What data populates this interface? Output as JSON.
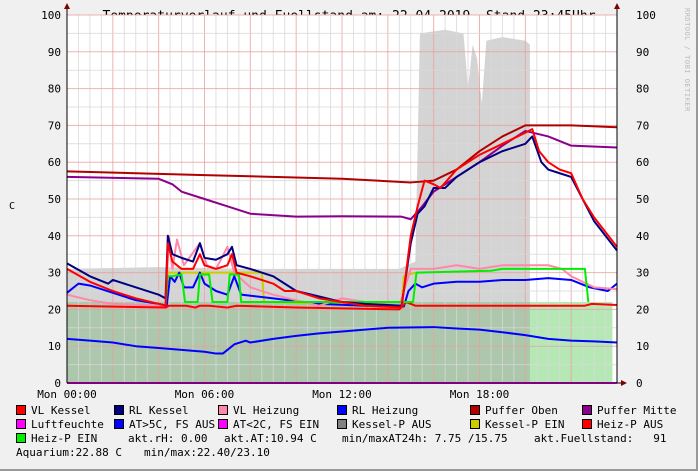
{
  "title": "Temperaturverlauf und Fuellstand am: 22.04.2019, Stand 23:45Uhr",
  "watermark": "RRDTOOL / TOBI OETIKER",
  "chart_data": {
    "type": "line",
    "title": "Temperaturverlauf und Fuellstand am: 22.04.2019, Stand 23:45Uhr",
    "ylabel": "C",
    "xlabel": "",
    "xlim_hours": [
      0,
      24
    ],
    "ylim": [
      0,
      100
    ],
    "x_ticks": [
      {
        "hour": 0,
        "label": "Mon 00:00"
      },
      {
        "hour": 6,
        "label": "Mon 06:00"
      },
      {
        "hour": 12,
        "label": "Mon 12:00"
      },
      {
        "hour": 18,
        "label": "Mon 18:00"
      }
    ],
    "y_ticks": [
      "0",
      "10",
      "20",
      "30",
      "40",
      "50",
      "60",
      "70",
      "80",
      "90",
      "100"
    ],
    "grid": true,
    "areas": [
      {
        "color": "#8fdc8f",
        "points": [
          [
            0,
            22
          ],
          [
            20.2,
            22
          ],
          [
            20.2,
            22
          ],
          [
            23.8,
            22
          ]
        ]
      },
      {
        "color": "#a0a0a0",
        "points": [
          [
            0,
            31
          ],
          [
            4,
            31.5
          ],
          [
            8,
            31
          ],
          [
            12,
            31
          ],
          [
            14.5,
            31
          ],
          [
            15.2,
            33
          ],
          [
            15.4,
            95
          ],
          [
            16.5,
            96
          ],
          [
            17.3,
            95
          ],
          [
            17.5,
            80
          ],
          [
            17.7,
            92
          ],
          [
            17.9,
            88
          ],
          [
            18.1,
            76
          ],
          [
            18.3,
            93
          ],
          [
            19,
            94
          ],
          [
            20,
            93
          ],
          [
            20.2,
            92
          ]
        ]
      }
    ],
    "series": [
      {
        "name": "Puffer Oben",
        "color": "#b00000",
        "points": [
          [
            0,
            57.5
          ],
          [
            6,
            56.5
          ],
          [
            12,
            55.5
          ],
          [
            15,
            54.5
          ],
          [
            16,
            55
          ],
          [
            17,
            58
          ],
          [
            18,
            63
          ],
          [
            19,
            67
          ],
          [
            20,
            70
          ],
          [
            22,
            70
          ],
          [
            24,
            69.5
          ]
        ]
      },
      {
        "name": "Puffer Mitte",
        "color": "#8b008b",
        "points": [
          [
            0,
            56
          ],
          [
            4,
            55.5
          ],
          [
            4.6,
            54
          ],
          [
            5,
            52
          ],
          [
            6,
            50
          ],
          [
            7,
            48
          ],
          [
            8,
            46
          ],
          [
            10,
            45.2
          ],
          [
            12,
            45.3
          ],
          [
            14.6,
            45.2
          ],
          [
            15,
            44.5
          ],
          [
            15.5,
            48
          ],
          [
            16,
            52
          ],
          [
            17,
            56
          ],
          [
            18,
            60
          ],
          [
            19,
            64.5
          ],
          [
            20,
            68.5
          ],
          [
            21,
            67
          ],
          [
            22,
            64.5
          ],
          [
            24,
            64
          ]
        ]
      },
      {
        "name": "AT>5C, FS AUS",
        "color": "#0000ff",
        "points": [
          [
            0,
            12
          ],
          [
            1,
            11.5
          ],
          [
            2,
            11
          ],
          [
            3,
            10
          ],
          [
            4,
            9.5
          ],
          [
            5,
            9
          ],
          [
            6,
            8.5
          ],
          [
            6.5,
            8
          ],
          [
            6.8,
            8
          ],
          [
            7.3,
            10.5
          ],
          [
            7.8,
            11.5
          ],
          [
            8,
            11
          ],
          [
            9,
            12
          ],
          [
            10,
            12.8
          ],
          [
            11,
            13.5
          ],
          [
            12,
            14
          ],
          [
            13,
            14.5
          ],
          [
            14,
            15
          ],
          [
            16,
            15.2
          ],
          [
            17,
            14.8
          ],
          [
            18,
            14.5
          ],
          [
            19,
            13.8
          ],
          [
            20,
            13
          ],
          [
            21,
            12
          ],
          [
            22,
            11.5
          ],
          [
            23,
            11.3
          ],
          [
            24,
            11
          ]
        ]
      },
      {
        "name": "Luftfeuchte",
        "color": "#ff00ff",
        "points": [
          [
            0,
            0
          ],
          [
            24,
            0
          ]
        ]
      },
      {
        "name": "Kessel-P EIN",
        "color": "#cccc00",
        "points": [
          [
            4.3,
            21
          ],
          [
            4.4,
            30
          ],
          [
            8.5,
            30
          ],
          [
            8.6,
            22
          ],
          [
            14.6,
            21
          ],
          [
            14.7,
            29
          ],
          [
            15.2,
            30
          ]
        ]
      },
      {
        "name": "RL Heizung",
        "color": "#0000ff",
        "points": [
          [
            0,
            24.5
          ],
          [
            0.5,
            27
          ],
          [
            1,
            26.5
          ],
          [
            2,
            24.5
          ],
          [
            3,
            22.5
          ],
          [
            4,
            21.5
          ],
          [
            4.35,
            21
          ],
          [
            4.5,
            29
          ],
          [
            4.7,
            27.5
          ],
          [
            4.9,
            30
          ],
          [
            5.1,
            26
          ],
          [
            5.5,
            26
          ],
          [
            5.8,
            30
          ],
          [
            6,
            27
          ],
          [
            6.5,
            25
          ],
          [
            7,
            24
          ],
          [
            7.3,
            29
          ],
          [
            7.6,
            24
          ],
          [
            9,
            23
          ],
          [
            11,
            21.5
          ],
          [
            13,
            21
          ],
          [
            14.7,
            20.8
          ],
          [
            14.9,
            25
          ],
          [
            15.2,
            27
          ],
          [
            15.5,
            26
          ],
          [
            16,
            27
          ],
          [
            17,
            27.5
          ],
          [
            18,
            27.5
          ],
          [
            19,
            28
          ],
          [
            20,
            28
          ],
          [
            21,
            28.5
          ],
          [
            22,
            28
          ],
          [
            22.8,
            26
          ],
          [
            23.6,
            25
          ],
          [
            24,
            27
          ]
        ]
      },
      {
        "name": "VL Heizung",
        "color": "#ff88aa",
        "points": [
          [
            0,
            24
          ],
          [
            1,
            22.5
          ],
          [
            2,
            21.5
          ],
          [
            4.3,
            21
          ],
          [
            4.45,
            40
          ],
          [
            4.6,
            31
          ],
          [
            4.8,
            39
          ],
          [
            5.1,
            32
          ],
          [
            5.8,
            38
          ],
          [
            6.1,
            32
          ],
          [
            6.5,
            31
          ],
          [
            7,
            37
          ],
          [
            7.3,
            30
          ],
          [
            8,
            26
          ],
          [
            9,
            24
          ],
          [
            10,
            22.5
          ],
          [
            11,
            21
          ],
          [
            12,
            23
          ],
          [
            13,
            22
          ],
          [
            14.5,
            21
          ],
          [
            15,
            31
          ],
          [
            16,
            31
          ],
          [
            17,
            32
          ],
          [
            18,
            31
          ],
          [
            19,
            32
          ],
          [
            20,
            32
          ],
          [
            21,
            32
          ],
          [
            21.6,
            31
          ],
          [
            22,
            29
          ],
          [
            23,
            26
          ],
          [
            24,
            25.5
          ]
        ]
      },
      {
        "name": "Heiz-P AUS",
        "color": "#ff0000",
        "points": [
          [
            0,
            21
          ],
          [
            4.3,
            20.5
          ],
          [
            4.45,
            21
          ],
          [
            5.0,
            21
          ],
          [
            5.2,
            21
          ],
          [
            5.6,
            20.5
          ],
          [
            5.8,
            21
          ],
          [
            6.2,
            21
          ],
          [
            7,
            20.5
          ],
          [
            7.4,
            21
          ],
          [
            10,
            20.5
          ],
          [
            14.5,
            20
          ],
          [
            14.8,
            22
          ],
          [
            15.2,
            21
          ],
          [
            22.6,
            21
          ],
          [
            22.9,
            21.5
          ],
          [
            24,
            21.2
          ]
        ]
      },
      {
        "name": "Heiz-P EIN",
        "color": "#00ee00",
        "points": [
          [
            4.3,
            21
          ],
          [
            4.4,
            29
          ],
          [
            4.6,
            29
          ],
          [
            5.0,
            29.5
          ],
          [
            5.15,
            22
          ],
          [
            5.7,
            22
          ],
          [
            5.8,
            29.5
          ],
          [
            6.2,
            29.5
          ],
          [
            6.35,
            22
          ],
          [
            7.0,
            22
          ],
          [
            7.1,
            29.5
          ],
          [
            7.5,
            29.5
          ],
          [
            7.6,
            22
          ],
          [
            15.1,
            22
          ],
          [
            15.25,
            30
          ],
          [
            18.5,
            30.5
          ],
          [
            19,
            31
          ],
          [
            22.6,
            31
          ],
          [
            22.75,
            22
          ]
        ]
      },
      {
        "name": "RL Kessel",
        "color": "#000080",
        "points": [
          [
            0,
            32.5
          ],
          [
            1,
            29
          ],
          [
            1.8,
            27
          ],
          [
            2,
            28
          ],
          [
            3,
            26
          ],
          [
            4,
            24
          ],
          [
            4.3,
            23
          ],
          [
            4.4,
            40
          ],
          [
            4.6,
            35
          ],
          [
            5.0,
            34
          ],
          [
            5.5,
            33
          ],
          [
            5.8,
            38
          ],
          [
            6.0,
            34
          ],
          [
            6.5,
            33.5
          ],
          [
            7.0,
            35
          ],
          [
            7.2,
            37
          ],
          [
            7.4,
            32
          ],
          [
            8,
            31
          ],
          [
            9,
            29
          ],
          [
            9.5,
            27
          ],
          [
            10,
            25
          ],
          [
            11,
            23.5
          ],
          [
            12,
            22
          ],
          [
            13,
            21.5
          ],
          [
            14.6,
            21
          ],
          [
            15,
            38
          ],
          [
            15.3,
            46
          ],
          [
            15.6,
            48
          ],
          [
            16,
            53
          ],
          [
            16.5,
            53
          ],
          [
            17,
            56
          ],
          [
            18,
            60
          ],
          [
            19,
            63
          ],
          [
            20,
            65
          ],
          [
            20.3,
            67
          ],
          [
            20.7,
            60
          ],
          [
            21,
            58
          ],
          [
            21.5,
            57
          ],
          [
            22,
            56
          ],
          [
            22.5,
            50
          ],
          [
            23,
            44
          ],
          [
            24,
            36
          ]
        ]
      },
      {
        "name": "VL Kessel",
        "color": "#ff0000",
        "points": [
          [
            0,
            31
          ],
          [
            1,
            27.5
          ],
          [
            2,
            25
          ],
          [
            3,
            23
          ],
          [
            4,
            21.5
          ],
          [
            4.3,
            21
          ],
          [
            4.4,
            38
          ],
          [
            4.6,
            33
          ],
          [
            5,
            31
          ],
          [
            5.5,
            31
          ],
          [
            5.8,
            35
          ],
          [
            6,
            32
          ],
          [
            6.5,
            31
          ],
          [
            7,
            32
          ],
          [
            7.2,
            35
          ],
          [
            7.4,
            30
          ],
          [
            8,
            29
          ],
          [
            9,
            27
          ],
          [
            9.5,
            25
          ],
          [
            10,
            25
          ],
          [
            11,
            23
          ],
          [
            12,
            22
          ],
          [
            13,
            21
          ],
          [
            14.6,
            20.5
          ],
          [
            15,
            40
          ],
          [
            15.3,
            48
          ],
          [
            15.6,
            55
          ],
          [
            16,
            54
          ],
          [
            16.3,
            53
          ],
          [
            17,
            58
          ],
          [
            18,
            62
          ],
          [
            19,
            65
          ],
          [
            20,
            68
          ],
          [
            20.3,
            69
          ],
          [
            20.6,
            63
          ],
          [
            21,
            60
          ],
          [
            21.5,
            58
          ],
          [
            22,
            57
          ],
          [
            22.5,
            50
          ],
          [
            23,
            45
          ],
          [
            24,
            37
          ]
        ]
      }
    ]
  },
  "legend": [
    {
      "label": "VL Kessel",
      "color": "#ff0000"
    },
    {
      "label": "RL Kessel",
      "color": "#000080"
    },
    {
      "label": "VL Heizung",
      "color": "#ff88aa"
    },
    {
      "label": "RL Heizung",
      "color": "#0000ff"
    },
    {
      "label": "Puffer Oben",
      "color": "#b00000"
    },
    {
      "label": "Puffer Mitte",
      "color": "#8b008b"
    },
    {
      "label": "Luftfeuchte",
      "color": "#ff00ff"
    },
    {
      "label": "AT>5C, FS AUS",
      "color": "#0000ff"
    },
    {
      "label": "AT<2C, FS EIN",
      "color": "#ff00ff"
    },
    {
      "label": "Kessel-P AUS",
      "color": "#808080"
    },
    {
      "label": "Kessel-P EIN",
      "color": "#cccc00"
    },
    {
      "label": "Heiz-P AUS",
      "color": "#ff0000"
    },
    {
      "label": "Heiz-P EIN",
      "color": "#00ee00"
    }
  ],
  "stats": {
    "akt_rh": "akt.rH: 0.00",
    "akt_at": "akt.AT:10.94 C",
    "minmax_at": "min/maxAT24h: 7.75 /15.75",
    "fuellstand": "akt.Fuellstand:   91",
    "aquarium": "Aquarium:22.88 C",
    "aquarium_minmax": "min/max:22.40/23.10"
  }
}
